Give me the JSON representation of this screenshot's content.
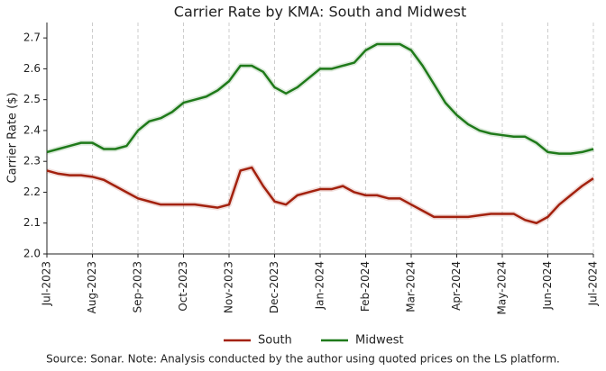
{
  "chart_data": {
    "type": "line",
    "title": "Carrier Rate by KMA: South and Midwest",
    "y_label": "Carrier Rate ($)",
    "source": "Source: Sonar. Note: Analysis conducted by the author using quoted prices on the LS platform.",
    "categories": [
      "Jul-2023",
      null,
      null,
      null,
      "Aug-2023",
      null,
      null,
      null,
      "Sep-2023",
      null,
      null,
      null,
      "Oct-2023",
      null,
      null,
      null,
      "Nov-2023",
      null,
      null,
      null,
      "Dec-2023",
      null,
      null,
      null,
      "Jan-2024",
      null,
      null,
      null,
      "Feb-2024",
      null,
      null,
      null,
      "Mar-2024",
      null,
      null,
      null,
      "Apr-2024",
      null,
      null,
      null,
      "May-2024",
      null,
      null,
      null,
      "Jun-2024",
      null,
      null,
      null,
      "Jul-2024"
    ],
    "ylim": [
      2.0,
      2.75
    ],
    "yticks": [
      {
        "value": 2,
        "label": "2.0"
      },
      2.1,
      2.2,
      2.3,
      2.4,
      2.5,
      2.6,
      2.7
    ],
    "grid": "x",
    "legend": "bottom",
    "series": [
      {
        "name": "South",
        "color": "#a3210e",
        "values": [
          2.27,
          2.26,
          2.255,
          2.255,
          2.25,
          2.24,
          2.22,
          2.2,
          2.18,
          2.17,
          2.16,
          2.16,
          2.16,
          2.16,
          2.155,
          2.15,
          2.16,
          2.27,
          2.28,
          2.22,
          2.17,
          2.16,
          2.19,
          2.2,
          2.21,
          2.21,
          2.22,
          2.2,
          2.19,
          2.19,
          2.18,
          2.18,
          2.16,
          2.14,
          2.12,
          2.12,
          2.12,
          2.12,
          2.125,
          2.13,
          2.13,
          2.13,
          2.11,
          2.1,
          2.12,
          2.16,
          2.19,
          2.22,
          2.245
        ]
      },
      {
        "name": "Midwest",
        "color": "#1f7a1a",
        "values": [
          2.33,
          2.34,
          2.35,
          2.36,
          2.36,
          2.34,
          2.34,
          2.35,
          2.4,
          2.43,
          2.44,
          2.46,
          2.49,
          2.5,
          2.51,
          2.53,
          2.56,
          2.61,
          2.61,
          2.59,
          2.54,
          2.52,
          2.54,
          2.57,
          2.6,
          2.6,
          2.61,
          2.62,
          2.66,
          2.68,
          2.68,
          2.68,
          2.66,
          2.61,
          2.55,
          2.49,
          2.45,
          2.42,
          2.4,
          2.39,
          2.385,
          2.38,
          2.38,
          2.36,
          2.33,
          2.325,
          2.325,
          2.33,
          2.34
        ]
      }
    ]
  }
}
